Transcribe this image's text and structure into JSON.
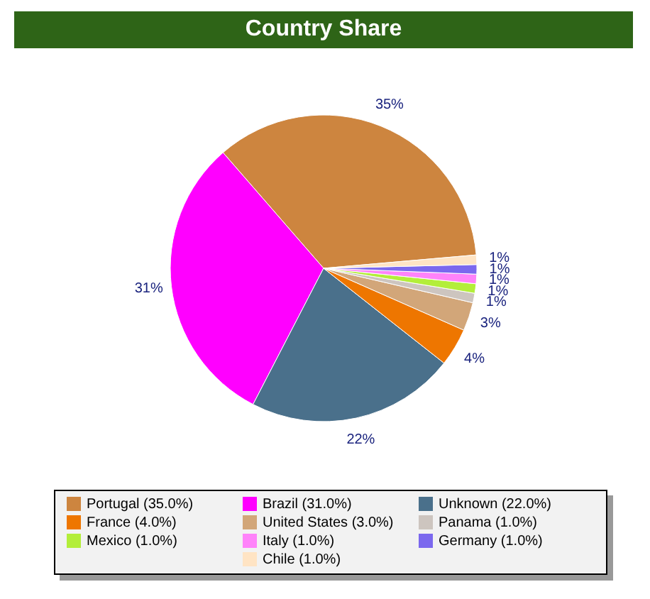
{
  "chart_data": {
    "type": "pie",
    "title": "Country Share",
    "categories": [
      "Portugal (35.0%)",
      "Brazil (31.0%)",
      "Unknown (22.0%)",
      "France (4.0%)",
      "United States (3.0%)",
      "Panama (1.0%)",
      "Mexico (1.0%)",
      "Italy (1.0%)",
      "Germany (1.0%)",
      "Chile (1.0%)"
    ],
    "values": [
      35,
      31,
      22,
      4,
      3,
      1,
      1,
      1,
      1,
      1
    ],
    "value_labels": [
      "35%",
      "31%",
      "22%",
      "4%",
      "3%",
      "1%",
      "1%",
      "1%",
      "1%",
      "1%"
    ],
    "colors": [
      "#cd853f",
      "#ff00ff",
      "#4a708b",
      "#ee7600",
      "#d2a679",
      "#cdc5bf",
      "#b3ee3a",
      "#ff83fa",
      "#7b68ee",
      "#ffe4c4"
    ],
    "legend": "bottom"
  }
}
